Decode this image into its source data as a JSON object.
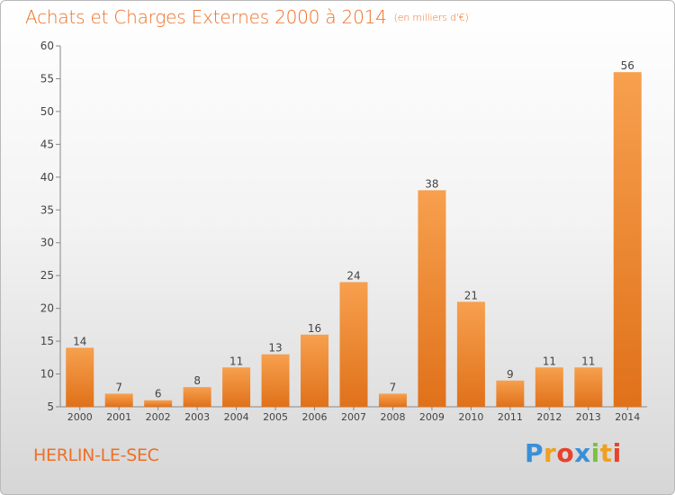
{
  "chart_data": {
    "type": "bar",
    "title": "Achats et Charges Externes 2000 à 2014",
    "subtitle": "(en milliers d'€)",
    "categories": [
      "2000",
      "2001",
      "2002",
      "2003",
      "2004",
      "2005",
      "2006",
      "2007",
      "2008",
      "2009",
      "2010",
      "2011",
      "2012",
      "2013",
      "2014"
    ],
    "values": [
      14,
      7,
      6,
      8,
      11,
      13,
      16,
      24,
      7,
      38,
      21,
      9,
      11,
      11,
      56
    ],
    "ylim": [
      5,
      60
    ],
    "yticks": [
      5,
      10,
      15,
      20,
      25,
      30,
      35,
      40,
      45,
      50,
      55,
      60
    ],
    "grid": false,
    "bar_color": "#f08a2c"
  },
  "place_name": "HERLIN-LE-SEC",
  "logo": {
    "letters": [
      "P",
      "r",
      "o",
      "x",
      "i",
      "t",
      "i"
    ],
    "colors": [
      "#3a8fd8",
      "#f0a020",
      "#e8412c",
      "#3a8fd8",
      "#7cc142",
      "#f0a020",
      "#e8412c"
    ]
  }
}
